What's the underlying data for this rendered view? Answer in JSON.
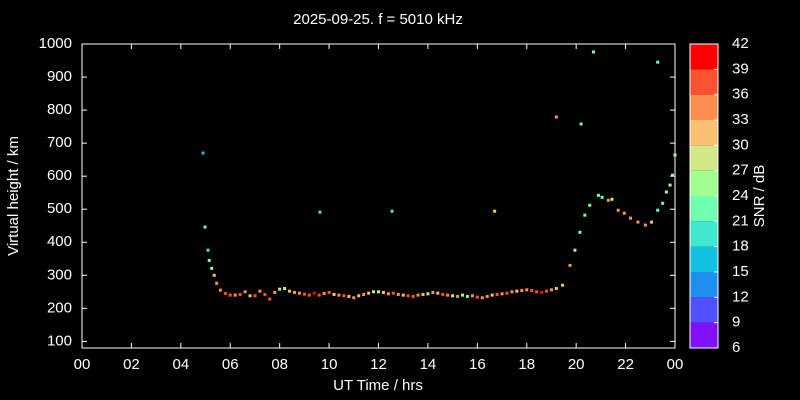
{
  "chart_data": {
    "type": "scatter",
    "title": "2025-09-25. f = 5010 kHz",
    "x_label": "UT Time / hrs",
    "y_label": "Virtual height / km",
    "xlim": [
      0,
      24
    ],
    "ylim": [
      80,
      1000
    ],
    "xticks": [
      {
        "value": 0,
        "label": "00"
      },
      {
        "value": 2,
        "label": "02"
      },
      {
        "value": 4,
        "label": "04"
      },
      {
        "value": 6,
        "label": "06"
      },
      {
        "value": 8,
        "label": "08"
      },
      10,
      12,
      14,
      16,
      18,
      20,
      22,
      {
        "value": 24,
        "label": "00"
      }
    ],
    "yticks": [
      100,
      200,
      300,
      400,
      500,
      600,
      700,
      800,
      900,
      1000
    ],
    "colorbar": {
      "label": "SNR / dB",
      "lim": [
        6,
        42
      ],
      "ticks": [
        6,
        9,
        12,
        15,
        18,
        21,
        24,
        27,
        30,
        33,
        36,
        39,
        42
      ],
      "colors": [
        "#8010ff",
        "#5050ff",
        "#2090f0",
        "#10c0e0",
        "#40e8d0",
        "#70ffb0",
        "#a0ff90",
        "#d0e888",
        "#f8c070",
        "#ff9050",
        "#ff5030",
        "#ff0000"
      ]
    },
    "x": [
      4.9,
      9.63,
      12.55,
      16.7,
      19.2,
      20.2,
      20.7,
      23.3,
      4.98,
      5.1,
      5.15,
      5.25,
      5.35,
      5.45,
      5.6,
      5.8,
      6.0,
      6.2,
      6.4,
      6.6,
      6.8,
      7.0,
      7.2,
      7.4,
      7.6,
      7.8,
      8.0,
      8.2,
      8.4,
      8.6,
      8.8,
      9.0,
      9.2,
      9.4,
      9.6,
      9.8,
      10.0,
      10.2,
      10.4,
      10.6,
      10.8,
      11.0,
      11.2,
      11.4,
      11.6,
      11.8,
      12.0,
      12.2,
      12.4,
      12.6,
      12.8,
      13.0,
      13.2,
      13.4,
      13.6,
      13.8,
      14.0,
      14.2,
      14.4,
      14.6,
      14.8,
      15.0,
      15.2,
      15.4,
      15.6,
      15.8,
      16.0,
      16.2,
      16.4,
      16.6,
      16.8,
      17.0,
      17.2,
      17.4,
      17.6,
      17.8,
      18.0,
      18.2,
      18.4,
      18.6,
      18.8,
      19.0,
      19.2,
      19.45,
      19.75,
      19.95,
      20.15,
      20.35,
      20.55,
      20.9,
      21.05,
      21.3,
      21.45,
      21.7,
      21.95,
      22.2,
      22.5,
      22.8,
      23.05,
      23.3,
      23.5,
      23.65,
      23.8,
      23.9,
      24.0
    ],
    "y": [
      670,
      491,
      494,
      494,
      779,
      758,
      976,
      945,
      446,
      376,
      345,
      321,
      300,
      276,
      255,
      245,
      240,
      240,
      242,
      250,
      238,
      238,
      252,
      242,
      228,
      248,
      258,
      260,
      252,
      248,
      246,
      243,
      240,
      246,
      240,
      245,
      248,
      242,
      240,
      238,
      236,
      232,
      238,
      242,
      246,
      250,
      250,
      248,
      244,
      246,
      242,
      240,
      238,
      236,
      240,
      242,
      244,
      248,
      246,
      242,
      240,
      238,
      236,
      240,
      236,
      238,
      234,
      232,
      236,
      240,
      242,
      244,
      246,
      250,
      252,
      254,
      256,
      254,
      250,
      248,
      252,
      256,
      260,
      270,
      330,
      376,
      430,
      482,
      512,
      542,
      536,
      527,
      530,
      497,
      488,
      473,
      461,
      452,
      461,
      497,
      518,
      552,
      573,
      603,
      664
    ],
    "snr": [
      15,
      20,
      20,
      32,
      35,
      21,
      23,
      23,
      22,
      20,
      22,
      26,
      30,
      34,
      35,
      36,
      36,
      33,
      36,
      33,
      30,
      36,
      33,
      36,
      36,
      33,
      24,
      27,
      30,
      33,
      33,
      36,
      36,
      39,
      36,
      33,
      36,
      30,
      33,
      36,
      30,
      33,
      30,
      33,
      30,
      27,
      24,
      30,
      33,
      36,
      33,
      30,
      36,
      36,
      33,
      30,
      27,
      33,
      30,
      36,
      33,
      27,
      33,
      24,
      21,
      33,
      36,
      33,
      33,
      30,
      36,
      33,
      36,
      33,
      30,
      33,
      33,
      36,
      36,
      39,
      36,
      33,
      30,
      30,
      33,
      24,
      22,
      23,
      22,
      22,
      22,
      33,
      24,
      33,
      33,
      33,
      33,
      33,
      30,
      22,
      21,
      24,
      24,
      24,
      24
    ]
  }
}
